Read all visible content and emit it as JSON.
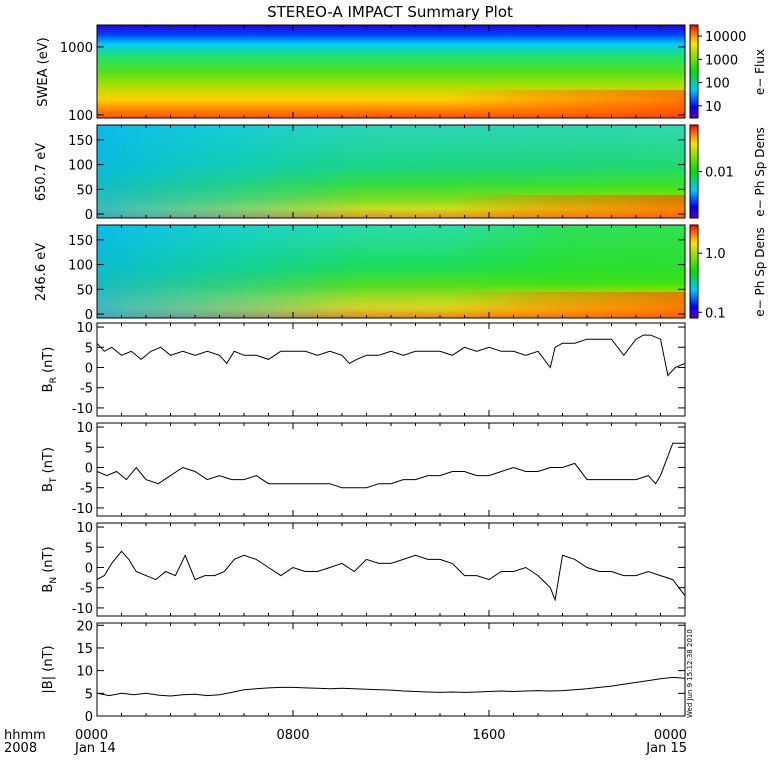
{
  "title": "STEREO-A IMPACT Summary Plot",
  "time_axis": {
    "corner_top": "hhmm",
    "corner_bottom": "2008",
    "ticks": [
      {
        "label": "0000",
        "date": "Jan 14",
        "hour": 0
      },
      {
        "label": "0800",
        "date": "",
        "hour": 8
      },
      {
        "label": "1600",
        "date": "",
        "hour": 16
      },
      {
        "label": "0000",
        "date": "Jan 15",
        "hour": 24
      }
    ],
    "span_hours": 24
  },
  "side_note": "Wed Jun 9 15:12:38 2010",
  "colorbars": {
    "flux": {
      "label": "e− Flux",
      "ticks": [
        {
          "label": "10000",
          "v": 10000
        },
        {
          "label": "1000",
          "v": 1000
        },
        {
          "label": "100",
          "v": 100
        },
        {
          "label": "10",
          "v": 10
        }
      ],
      "range": [
        3,
        30000
      ]
    },
    "dens650": {
      "label": "e− Ph Sp Dens",
      "ticks": [
        {
          "label": "0.01",
          "v": 0.01
        }
      ],
      "range": [
        0.002,
        0.05
      ]
    },
    "dens246": {
      "label": "e− Ph Sp Dens",
      "ticks": [
        {
          "label": "1.0",
          "v": 1.0
        },
        {
          "label": "0.1",
          "v": 0.1
        }
      ],
      "range": [
        0.08,
        3.0
      ]
    }
  },
  "spectrograms": {
    "swea": {
      "ylabel": "SWEA (eV)",
      "ticks": [
        {
          "label": "1000",
          "v": 1000
        },
        {
          "label": "100",
          "v": 100
        }
      ],
      "yrange": [
        90,
        2100
      ],
      "scale": "log"
    },
    "pad650": {
      "ylabel": "650.7 eV",
      "ticks": [
        {
          "label": "150",
          "v": 150
        },
        {
          "label": "100",
          "v": 100
        },
        {
          "label": "50",
          "v": 50
        },
        {
          "label": "0",
          "v": 0
        }
      ],
      "yrange": [
        -8,
        180
      ]
    },
    "pad246": {
      "ylabel": "246.6 eV",
      "ticks": [
        {
          "label": "150",
          "v": 150
        },
        {
          "label": "100",
          "v": 100
        },
        {
          "label": "50",
          "v": 50
        },
        {
          "label": "0",
          "v": 0
        }
      ],
      "yrange": [
        -8,
        180
      ]
    }
  },
  "chart_data": [
    {
      "type": "line",
      "name": "BR",
      "ylabel_main": "B",
      "ylabel_sub": "R",
      "ylabel_unit": " (nT)",
      "ylim": [
        -12,
        11
      ],
      "yticks": [
        "10",
        "5",
        "0",
        "-5",
        "-10"
      ],
      "x_hours": [
        0,
        0.3,
        0.6,
        1,
        1.4,
        1.8,
        2.2,
        2.6,
        3,
        3.5,
        4,
        4.5,
        5,
        5.3,
        5.6,
        6,
        6.5,
        7,
        7.5,
        8,
        8.5,
        9,
        9.5,
        10,
        10.3,
        10.6,
        11,
        11.5,
        12,
        12.5,
        13,
        13.5,
        14,
        14.5,
        15,
        15.5,
        16,
        16.5,
        17,
        17.5,
        18,
        18.5,
        18.7,
        19,
        19.5,
        20,
        20.5,
        21,
        21.5,
        22,
        22.3,
        22.6,
        23,
        23.3,
        23.6,
        24
      ],
      "values": [
        6,
        4,
        5,
        3,
        4,
        2,
        4,
        5,
        3,
        4,
        3,
        4,
        3,
        1,
        4,
        3,
        3,
        2,
        4,
        4,
        4,
        3,
        4,
        3,
        1,
        2,
        3,
        3,
        4,
        3,
        4,
        4,
        4,
        3,
        5,
        4,
        5,
        4,
        4,
        3,
        4,
        0,
        5,
        6,
        6,
        7,
        7,
        7,
        3,
        7,
        8,
        8,
        7,
        -2,
        0,
        1
      ]
    },
    {
      "type": "line",
      "name": "BT",
      "ylabel_main": "B",
      "ylabel_sub": "T",
      "ylabel_unit": " (nT)",
      "ylim": [
        -12,
        11
      ],
      "yticks": [
        "10",
        "5",
        "0",
        "-5",
        "-10"
      ],
      "x_hours": [
        0,
        0.4,
        0.8,
        1.2,
        1.6,
        2,
        2.5,
        3,
        3.5,
        4,
        4.5,
        5,
        5.5,
        6,
        6.5,
        7,
        7.5,
        8,
        8.5,
        9,
        9.5,
        10,
        10.5,
        11,
        11.5,
        12,
        12.5,
        13,
        13.5,
        14,
        14.5,
        15,
        15.5,
        16,
        16.5,
        17,
        17.5,
        18,
        18.5,
        19,
        19.5,
        20,
        20.5,
        21,
        21.5,
        22,
        22.5,
        22.8,
        23,
        23.5,
        24
      ],
      "values": [
        -1,
        -2,
        -1,
        -3,
        0,
        -3,
        -4,
        -2,
        0,
        -1,
        -3,
        -2,
        -3,
        -3,
        -2,
        -4,
        -4,
        -4,
        -4,
        -4,
        -4,
        -5,
        -5,
        -5,
        -4,
        -4,
        -3,
        -3,
        -2,
        -2,
        -1,
        -1,
        -2,
        -2,
        -1,
        0,
        -1,
        -1,
        0,
        0,
        1,
        -3,
        -3,
        -3,
        -3,
        -3,
        -2,
        -4,
        -2,
        6,
        6
      ]
    },
    {
      "type": "line",
      "name": "BN",
      "ylabel_main": "B",
      "ylabel_sub": "N",
      "ylabel_unit": " (nT)",
      "ylim": [
        -12,
        11
      ],
      "yticks": [
        "10",
        "5",
        "0",
        "-5",
        "-10"
      ],
      "x_hours": [
        0,
        0.3,
        0.6,
        1,
        1.3,
        1.6,
        2,
        2.4,
        2.8,
        3.2,
        3.6,
        4,
        4.4,
        4.8,
        5.2,
        5.6,
        6,
        6.5,
        7,
        7.5,
        8,
        8.5,
        9,
        9.5,
        10,
        10.5,
        11,
        11.5,
        12,
        12.5,
        13,
        13.5,
        14,
        14.5,
        15,
        15.5,
        16,
        16.5,
        17,
        17.5,
        18,
        18.5,
        18.7,
        19,
        19.5,
        20,
        20.5,
        21,
        21.5,
        22,
        22.5,
        23,
        23.5,
        24
      ],
      "values": [
        -3,
        -2,
        1,
        4,
        2,
        -1,
        -2,
        -3,
        -1,
        -2,
        3,
        -3,
        -2,
        -2,
        -1,
        2,
        3,
        2,
        0,
        -2,
        0,
        -1,
        -1,
        0,
        1,
        -1,
        2,
        1,
        1,
        2,
        3,
        2,
        2,
        1,
        -2,
        -2,
        -3,
        -1,
        -1,
        0,
        -2,
        -5,
        -8,
        3,
        2,
        0,
        -1,
        -1,
        -2,
        -2,
        -1,
        -2,
        -3,
        -7
      ]
    },
    {
      "type": "line",
      "name": "|B|",
      "ylabel_main": "|B|",
      "ylabel_sub": "",
      "ylabel_unit": " (nT)",
      "ylim": [
        0,
        20.5
      ],
      "yticks": [
        "20",
        "15",
        "10",
        "5",
        "0"
      ],
      "x_hours": [
        0,
        0.5,
        1,
        1.5,
        2,
        2.5,
        3,
        3.5,
        4,
        4.5,
        5,
        5.5,
        6,
        6.5,
        7,
        7.5,
        8,
        8.5,
        9,
        9.5,
        10,
        10.5,
        11,
        11.5,
        12,
        12.5,
        13,
        13.5,
        14,
        14.5,
        15,
        15.5,
        16,
        16.5,
        17,
        17.5,
        18,
        18.5,
        19,
        19.5,
        20,
        20.5,
        21,
        21.5,
        22,
        22.5,
        23,
        23.5,
        24
      ],
      "values": [
        5,
        4.5,
        5,
        4.7,
        5,
        4.6,
        4.4,
        4.7,
        4.8,
        4.5,
        4.7,
        5.2,
        5.8,
        6,
        6.2,
        6.3,
        6.3,
        6.2,
        6.1,
        6,
        6.1,
        6,
        5.9,
        5.8,
        5.7,
        5.5,
        5.4,
        5.3,
        5.2,
        5.3,
        5.2,
        5.3,
        5.4,
        5.5,
        5.4,
        5.5,
        5.6,
        5.5,
        5.6,
        5.8,
        6,
        6.3,
        6.6,
        7,
        7.4,
        7.8,
        8.2,
        8.5,
        8.3
      ]
    }
  ]
}
